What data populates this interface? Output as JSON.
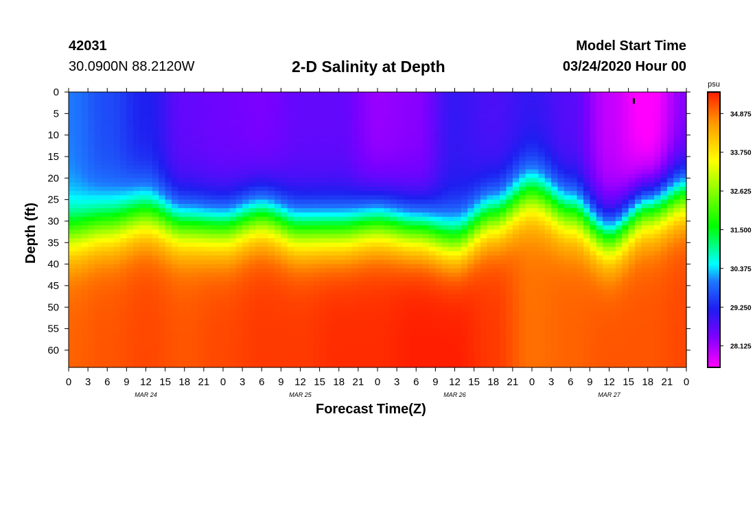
{
  "header": {
    "station_id": "42031",
    "coordinates": "30.0900N 88.2120W",
    "title": "2-D Salinity at Depth",
    "model_label": "Model Start Time",
    "model_time": "03/24/2020 Hour 00"
  },
  "colors": {
    "magenta": "#ff00ff",
    "violet": "#7b00ff",
    "blue": "#1e1ef0",
    "lightblue": "#1e78ff",
    "cyan": "#00ffff",
    "green": "#00ff00",
    "yellow": "#ffff00",
    "orange": "#ff9900",
    "red": "#ff1e00"
  },
  "chart_data": {
    "type": "heatmap",
    "title": "2-D Salinity at Depth",
    "xlabel": "Forecast Time(Z)",
    "ylabel": "Depth (ft)",
    "colorbar_unit": "psu",
    "colorbar_ticks": [
      34.875,
      33.75,
      32.625,
      31.5,
      30.375,
      29.25,
      28.125
    ],
    "colorbar_range": [
      27.5,
      35.5
    ],
    "ylim": [
      0,
      64
    ],
    "yticks": [
      0,
      5,
      10,
      15,
      20,
      25,
      30,
      35,
      40,
      45,
      50,
      55,
      60
    ],
    "xlim_hours": [
      0,
      96
    ],
    "xtick_labels": [
      "0",
      "3",
      "6",
      "9",
      "12",
      "15",
      "18",
      "21",
      "0",
      "3",
      "6",
      "9",
      "12",
      "15",
      "18",
      "21",
      "0",
      "3",
      "6",
      "9",
      "12",
      "15",
      "18",
      "21",
      "0",
      "3",
      "6",
      "9",
      "12",
      "15",
      "18",
      "21",
      "0"
    ],
    "date_labels": [
      {
        "hour": 12,
        "label": "MAR 24"
      },
      {
        "hour": 36,
        "label": "MAR 25"
      },
      {
        "hour": 60,
        "label": "MAR 26"
      },
      {
        "hour": 84,
        "label": "MAR 27"
      }
    ],
    "halocline_hours": [
      0,
      6,
      12,
      18,
      24,
      30,
      36,
      42,
      48,
      54,
      60,
      66,
      72,
      78,
      84,
      90,
      96
    ],
    "halocline_depth_ft": [
      33,
      31,
      28.5,
      31,
      31.5,
      29,
      32,
      32,
      30.5,
      32,
      34.5,
      29,
      23.5,
      28,
      33.5,
      27,
      24
    ],
    "surface_salinity_psu": [
      30.0,
      29.6,
      29.2,
      28.6,
      28.5,
      28.4,
      28.6,
      28.6,
      28.2,
      28.3,
      29.0,
      28.8,
      29.0,
      28.7,
      27.9,
      27.4,
      28.3
    ],
    "deep_salinity_psu": [
      35.0,
      35.1,
      35.2,
      35.1,
      35.2,
      35.3,
      35.3,
      35.4,
      35.4,
      35.5,
      35.5,
      35.3,
      34.9,
      35.0,
      35.1,
      35.1,
      35.2
    ]
  }
}
